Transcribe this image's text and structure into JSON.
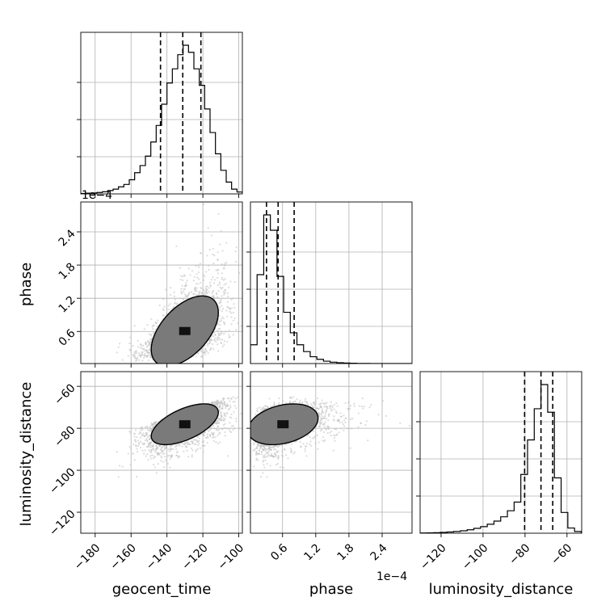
{
  "chart_data": {
    "type": "corner",
    "parameters": [
      "geocent_time",
      "phase",
      "luminosity_distance"
    ],
    "axis_labels": {
      "geocent_time": "geocent_time",
      "phase": "phase",
      "luminosity_distance": "luminosity_distance"
    },
    "offset_labels": {
      "geocent_time_y": "1e−4",
      "phase_x": "1e−4"
    },
    "ranges": {
      "geocent_time": [
        -188,
        -98
      ],
      "phase": [
        0.02,
        2.94
      ],
      "luminosity_distance": [
        -130,
        -53
      ]
    },
    "ticks": {
      "geocent_time": [
        -180,
        -160,
        -140,
        -120,
        -100
      ],
      "phase": [
        0.6,
        1.2,
        1.8,
        2.4
      ],
      "luminosity_distance": [
        -120,
        -100,
        -80,
        -60
      ]
    },
    "tick_labels": {
      "geocent_time": [
        "−180",
        "−160",
        "−140",
        "−120",
        "−100"
      ],
      "phase": [
        "0.6",
        "1.2",
        "1.8",
        "2.4"
      ],
      "luminosity_distance": [
        "−120",
        "−100",
        "−80",
        "−60"
      ]
    },
    "quantiles": {
      "geocent_time": [
        -143.6,
        -131.2,
        -121.1
      ],
      "phase": [
        0.31,
        0.52,
        0.81
      ],
      "luminosity_distance": [
        -80.2,
        -72.4,
        -66.8
      ]
    },
    "histograms": {
      "geocent_time": {
        "edges": [
          -188,
          -185,
          -182,
          -179,
          -176,
          -173,
          -170,
          -167,
          -164,
          -161,
          -158,
          -155,
          -152,
          -149,
          -146,
          -143,
          -140,
          -137,
          -134,
          -131,
          -128,
          -125,
          -122,
          -119,
          -116,
          -113,
          -110,
          -107,
          -104,
          -101,
          -98
        ],
        "counts": [
          2,
          3,
          4,
          6,
          9,
          14,
          20,
          30,
          40,
          60,
          90,
          120,
          160,
          220,
          290,
          380,
          470,
          530,
          590,
          630,
          600,
          530,
          460,
          360,
          260,
          170,
          100,
          50,
          20,
          8
        ]
      },
      "phase": {
        "edges": [
          0.02,
          0.14,
          0.26,
          0.38,
          0.5,
          0.62,
          0.74,
          0.86,
          0.98,
          1.1,
          1.22,
          1.34,
          1.46,
          1.58,
          1.7,
          1.82,
          1.94,
          2.06,
          2.18,
          2.3,
          2.42,
          2.54,
          2.66,
          2.78,
          2.94
        ],
        "counts": [
          110,
          520,
          870,
          780,
          510,
          300,
          180,
          110,
          70,
          40,
          25,
          14,
          8,
          5,
          3,
          2,
          1,
          1,
          0,
          0,
          0,
          0,
          0,
          0
        ]
      },
      "luminosity_distance": {
        "edges": [
          -130,
          -126.8,
          -123.6,
          -120.4,
          -117.2,
          -114,
          -110.8,
          -107.6,
          -104.4,
          -101.2,
          -98,
          -94.8,
          -91.6,
          -88.4,
          -85.2,
          -82,
          -78.8,
          -75.6,
          -72.4,
          -69.2,
          -66,
          -62.8,
          -59.6,
          -56.4,
          -53.2
        ],
        "counts": [
          1,
          2,
          3,
          5,
          7,
          10,
          14,
          20,
          28,
          38,
          52,
          70,
          95,
          130,
          180,
          340,
          540,
          720,
          860,
          700,
          320,
          120,
          30,
          10
        ]
      }
    },
    "samples": {
      "n": 2500,
      "seed": 7
    },
    "levels": [
      "inner",
      "middle",
      "outer"
    ],
    "colors": {
      "line": "#000000",
      "grid": "#b0b0b0",
      "points": "#bfbfbf"
    },
    "grid": true
  }
}
